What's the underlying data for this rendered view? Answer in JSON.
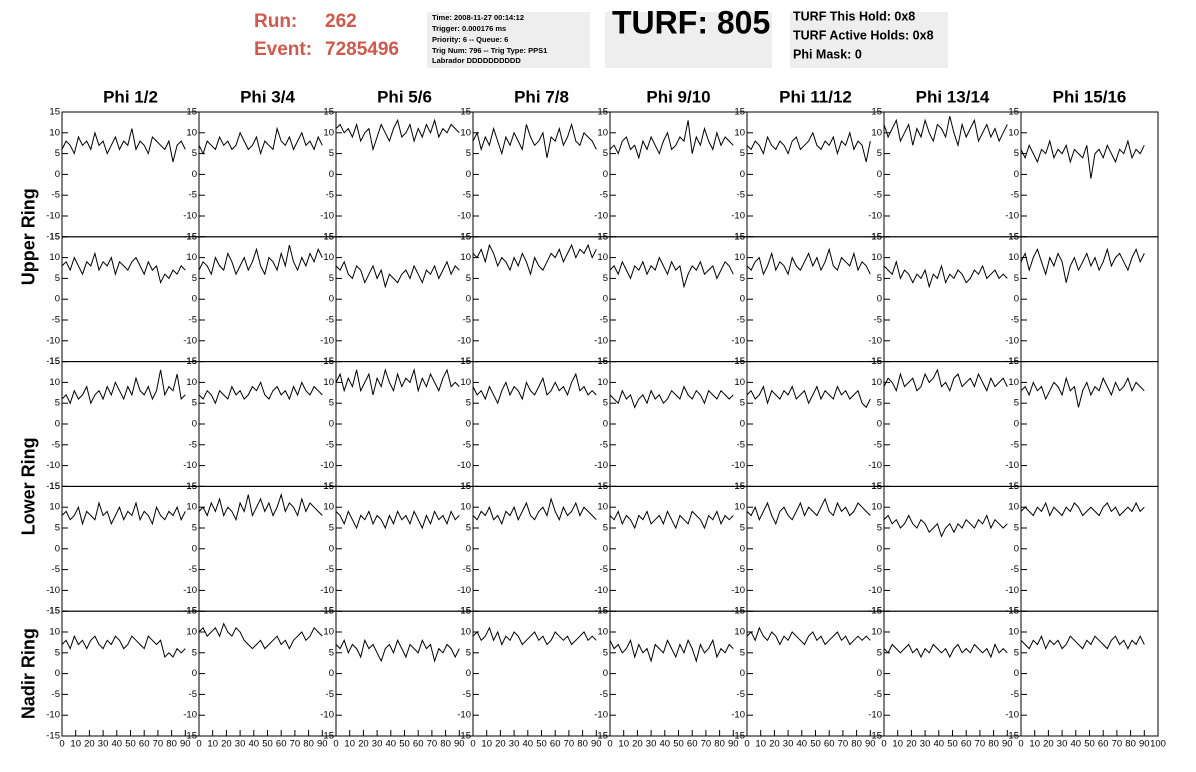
{
  "header": {
    "run_label": "Run:",
    "run": "262",
    "event_label": "Event:",
    "event": "7285496",
    "info": [
      "Time: 2008-11-27 00:14:12",
      "Trigger: 0.000176 ms",
      "Priority: 6 -- Queue: 6",
      "Trig Num: 796 -- Trig Type: PPS1",
      "Labrador DDDDDDDDDD"
    ],
    "turf": "TURF: 805",
    "turf_info": [
      "TURF This Hold: 0x8",
      "TURF Active Holds: 0x8",
      "Phi Mask: 0"
    ]
  },
  "chart_data": {
    "type": "line",
    "color": "#000000",
    "columns": [
      "Phi 1/2",
      "Phi 3/4",
      "Phi 5/6",
      "Phi 7/8",
      "Phi 9/10",
      "Phi 11/12",
      "Phi 13/14",
      "Phi 15/16"
    ],
    "row_labels": [
      "Upper Ring",
      "Lower Ring",
      "Nadir Ring"
    ],
    "xlim": [
      0,
      100
    ],
    "xticks": [
      0,
      10,
      20,
      30,
      40,
      50,
      60,
      70,
      80,
      90,
      100
    ],
    "ylim": [
      -15,
      15
    ],
    "yticks": [
      -15,
      -10,
      -5,
      0,
      5,
      10,
      15
    ],
    "x": [
      0,
      3,
      6,
      9,
      12,
      15,
      18,
      21,
      24,
      27,
      30,
      33,
      36,
      39,
      42,
      45,
      48,
      51,
      54,
      57,
      60,
      63,
      66,
      69,
      72,
      75,
      78,
      81,
      84,
      87,
      90
    ],
    "series": [
      {
        "values": [
          6,
          8,
          7,
          5,
          9,
          7,
          8,
          6,
          10,
          7,
          8,
          5,
          7,
          9,
          6,
          8,
          7,
          11,
          6,
          8,
          7,
          5,
          9,
          8,
          7,
          6,
          8,
          3,
          7,
          8,
          6
        ]
      },
      {
        "values": [
          7,
          5,
          8,
          7,
          6,
          9,
          7,
          8,
          6,
          7,
          10,
          8,
          6,
          7,
          9,
          5,
          8,
          7,
          6,
          11,
          8,
          7,
          9,
          6,
          8,
          10,
          7,
          8,
          6,
          9,
          7
        ]
      },
      {
        "values": [
          11,
          12,
          10,
          11,
          9,
          12,
          8,
          10,
          11,
          6,
          9,
          12,
          10,
          8,
          11,
          13,
          9,
          10,
          12,
          8,
          11,
          9,
          12,
          10,
          13,
          9,
          11,
          10,
          12,
          11,
          10
        ]
      },
      {
        "values": [
          8,
          10,
          6,
          9,
          7,
          11,
          8,
          5,
          9,
          7,
          10,
          8,
          6,
          12,
          9,
          7,
          8,
          10,
          4,
          9,
          8,
          11,
          7,
          9,
          12,
          8,
          7,
          10,
          9,
          8,
          6
        ]
      },
      {
        "values": [
          6,
          7,
          5,
          8,
          9,
          6,
          7,
          4,
          8,
          6,
          9,
          7,
          5,
          8,
          10,
          6,
          7,
          9,
          8,
          13,
          5,
          9,
          7,
          11,
          8,
          6,
          10,
          7,
          9,
          8,
          7
        ]
      },
      {
        "values": [
          7,
          6,
          8,
          7,
          5,
          9,
          7,
          6,
          8,
          7,
          5,
          8,
          9,
          6,
          7,
          8,
          10,
          7,
          6,
          8,
          7,
          9,
          5,
          8,
          7,
          10,
          6,
          8,
          7,
          3,
          8
        ]
      },
      {
        "values": [
          12,
          9,
          11,
          13,
          8,
          10,
          12,
          7,
          11,
          9,
          13,
          10,
          8,
          12,
          11,
          9,
          14,
          10,
          7,
          12,
          9,
          11,
          13,
          8,
          10,
          12,
          9,
          11,
          8,
          10,
          12
        ]
      },
      {
        "values": [
          6,
          4,
          7,
          5,
          3,
          6,
          5,
          8,
          4,
          6,
          5,
          7,
          3,
          6,
          5,
          4,
          7,
          -1,
          5,
          6,
          4,
          7,
          5,
          3,
          6,
          5,
          8,
          4,
          6,
          5,
          7
        ]
      },
      {
        "values": [
          8,
          9,
          7,
          10,
          8,
          6,
          9,
          8,
          11,
          7,
          9,
          8,
          10,
          6,
          9,
          8,
          7,
          9,
          10,
          8,
          6,
          9,
          7,
          8,
          4,
          6,
          5,
          7,
          6,
          8,
          7
        ]
      },
      {
        "values": [
          7,
          9,
          8,
          6,
          10,
          8,
          7,
          11,
          9,
          6,
          8,
          10,
          7,
          9,
          12,
          8,
          6,
          10,
          9,
          7,
          11,
          8,
          13,
          9,
          7,
          10,
          8,
          11,
          9,
          12,
          10
        ]
      },
      {
        "values": [
          8,
          7,
          9,
          6,
          5,
          8,
          7,
          4,
          6,
          8,
          5,
          7,
          3,
          6,
          5,
          4,
          6,
          7,
          5,
          8,
          6,
          4,
          7,
          6,
          8,
          5,
          7,
          9,
          6,
          8,
          7
        ]
      },
      {
        "values": [
          11,
          10,
          12,
          9,
          13,
          11,
          8,
          10,
          9,
          7,
          10,
          8,
          11,
          9,
          6,
          10,
          8,
          7,
          9,
          11,
          10,
          12,
          9,
          11,
          13,
          10,
          12,
          11,
          13,
          10,
          12
        ]
      },
      {
        "values": [
          7,
          8,
          6,
          9,
          7,
          5,
          8,
          7,
          9,
          6,
          8,
          7,
          10,
          8,
          6,
          9,
          7,
          8,
          3,
          6,
          8,
          7,
          9,
          6,
          7,
          8,
          5,
          7,
          9,
          8,
          6
        ]
      },
      {
        "values": [
          8,
          7,
          9,
          10,
          6,
          8,
          11,
          7,
          9,
          8,
          6,
          10,
          8,
          7,
          9,
          11,
          8,
          10,
          7,
          9,
          12,
          8,
          7,
          10,
          9,
          8,
          11,
          7,
          9,
          8,
          6
        ]
      },
      {
        "values": [
          8,
          7,
          6,
          9,
          5,
          7,
          6,
          4,
          6,
          5,
          7,
          3,
          6,
          5,
          8,
          4,
          6,
          5,
          7,
          6,
          4,
          5,
          7,
          6,
          8,
          5,
          6,
          7,
          5,
          6,
          5
        ]
      },
      {
        "values": [
          9,
          11,
          7,
          10,
          12,
          9,
          6,
          10,
          8,
          11,
          9,
          4,
          8,
          10,
          7,
          9,
          11,
          8,
          10,
          7,
          9,
          12,
          8,
          10,
          11,
          9,
          7,
          10,
          12,
          9,
          11
        ]
      },
      {
        "values": [
          6,
          7,
          5,
          8,
          6,
          7,
          9,
          5,
          7,
          8,
          6,
          9,
          7,
          10,
          8,
          6,
          9,
          7,
          11,
          8,
          7,
          9,
          6,
          8,
          13,
          7,
          9,
          8,
          12,
          6,
          7
        ]
      },
      {
        "values": [
          7,
          6,
          8,
          7,
          5,
          8,
          7,
          6,
          9,
          7,
          8,
          6,
          7,
          9,
          8,
          10,
          7,
          6,
          8,
          9,
          7,
          8,
          6,
          9,
          7,
          10,
          8,
          7,
          9,
          8,
          7
        ]
      },
      {
        "values": [
          10,
          12,
          8,
          11,
          9,
          13,
          8,
          10,
          12,
          7,
          11,
          9,
          13,
          10,
          8,
          12,
          9,
          11,
          10,
          13,
          8,
          11,
          9,
          12,
          10,
          8,
          11,
          13,
          9,
          10,
          9
        ]
      },
      {
        "values": [
          9,
          7,
          8,
          6,
          9,
          7,
          5,
          8,
          10,
          7,
          9,
          8,
          6,
          10,
          8,
          7,
          9,
          11,
          7,
          8,
          10,
          8,
          9,
          7,
          10,
          12,
          8,
          9,
          7,
          8,
          7
        ]
      },
      {
        "values": [
          7,
          6,
          5,
          8,
          6,
          7,
          4,
          6,
          7,
          5,
          8,
          6,
          7,
          5,
          6,
          8,
          7,
          6,
          9,
          7,
          6,
          8,
          7,
          5,
          8,
          7,
          6,
          8,
          7,
          6,
          7
        ]
      },
      {
        "values": [
          7,
          8,
          6,
          7,
          9,
          5,
          8,
          7,
          6,
          8,
          7,
          9,
          6,
          7,
          8,
          5,
          7,
          9,
          6,
          8,
          7,
          6,
          9,
          7,
          8,
          6,
          7,
          8,
          5,
          4,
          6
        ]
      },
      {
        "values": [
          9,
          11,
          10,
          8,
          12,
          9,
          10,
          11,
          8,
          9,
          12,
          10,
          11,
          13,
          9,
          10,
          8,
          11,
          12,
          9,
          10,
          11,
          9,
          12,
          10,
          8,
          11,
          9,
          10,
          11,
          9
        ]
      },
      {
        "values": [
          8,
          9,
          7,
          10,
          8,
          9,
          6,
          8,
          10,
          9,
          7,
          11,
          8,
          9,
          4,
          8,
          10,
          7,
          9,
          8,
          11,
          9,
          7,
          10,
          8,
          9,
          11,
          8,
          10,
          9,
          8
        ]
      },
      {
        "values": [
          8,
          9,
          7,
          8,
          10,
          6,
          9,
          8,
          7,
          11,
          8,
          9,
          6,
          8,
          10,
          7,
          9,
          8,
          11,
          7,
          9,
          8,
          6,
          10,
          8,
          7,
          9,
          8,
          10,
          7,
          9
        ]
      },
      {
        "values": [
          9,
          10,
          8,
          11,
          9,
          12,
          8,
          10,
          9,
          7,
          11,
          9,
          13,
          8,
          10,
          12,
          9,
          11,
          8,
          10,
          13,
          9,
          11,
          10,
          8,
          12,
          9,
          11,
          10,
          9,
          8
        ]
      },
      {
        "values": [
          9,
          8,
          6,
          9,
          7,
          5,
          8,
          7,
          9,
          6,
          8,
          7,
          5,
          8,
          6,
          9,
          7,
          8,
          6,
          9,
          7,
          5,
          8,
          6,
          9,
          7,
          8,
          6,
          9,
          7,
          8
        ]
      },
      {
        "values": [
          8,
          7,
          9,
          8,
          10,
          7,
          8,
          6,
          9,
          8,
          10,
          7,
          9,
          11,
          8,
          7,
          9,
          10,
          8,
          12,
          9,
          7,
          10,
          8,
          9,
          11,
          8,
          10,
          9,
          8,
          7
        ]
      },
      {
        "values": [
          8,
          7,
          9,
          6,
          8,
          7,
          5,
          8,
          7,
          9,
          6,
          7,
          8,
          6,
          9,
          7,
          5,
          8,
          7,
          6,
          9,
          8,
          7,
          5,
          8,
          7,
          9,
          6,
          8,
          7,
          8
        ]
      },
      {
        "values": [
          9,
          8,
          10,
          7,
          9,
          11,
          8,
          6,
          9,
          10,
          8,
          7,
          9,
          11,
          8,
          10,
          9,
          8,
          10,
          12,
          9,
          8,
          11,
          9,
          10,
          8,
          9,
          11,
          10,
          9,
          8
        ]
      },
      {
        "values": [
          7,
          8,
          6,
          7,
          5,
          6,
          8,
          6,
          5,
          7,
          6,
          4,
          5,
          6,
          3,
          5,
          6,
          4,
          6,
          5,
          7,
          6,
          5,
          7,
          6,
          8,
          5,
          7,
          6,
          5,
          6
        ]
      },
      {
        "values": [
          9,
          10,
          9,
          8,
          10,
          9,
          11,
          8,
          10,
          9,
          8,
          10,
          9,
          11,
          10,
          8,
          9,
          10,
          9,
          8,
          10,
          11,
          9,
          10,
          8,
          9,
          10,
          9,
          11,
          9,
          10
        ]
      },
      {
        "values": [
          7,
          8,
          6,
          9,
          7,
          8,
          6,
          8,
          9,
          7,
          6,
          8,
          7,
          9,
          8,
          6,
          7,
          9,
          8,
          7,
          6,
          9,
          8,
          7,
          8,
          4,
          5,
          4,
          6,
          5,
          6
        ]
      },
      {
        "values": [
          10,
          11,
          9,
          10,
          11,
          9,
          12,
          10,
          9,
          11,
          10,
          8,
          7,
          6,
          7,
          8,
          6,
          7,
          8,
          9,
          7,
          8,
          6,
          8,
          9,
          10,
          8,
          9,
          11,
          10,
          9
        ]
      },
      {
        "values": [
          7,
          6,
          8,
          5,
          7,
          6,
          4,
          8,
          6,
          7,
          5,
          3,
          6,
          7,
          5,
          8,
          6,
          4,
          7,
          6,
          5,
          8,
          6,
          7,
          3,
          6,
          5,
          7,
          6,
          4,
          6
        ]
      },
      {
        "values": [
          9,
          10,
          8,
          9,
          11,
          8,
          10,
          7,
          9,
          8,
          10,
          9,
          7,
          8,
          9,
          10,
          8,
          9,
          7,
          8,
          10,
          9,
          8,
          9,
          7,
          8,
          9,
          10,
          8,
          9,
          8
        ]
      },
      {
        "values": [
          8,
          6,
          7,
          5,
          6,
          8,
          4,
          7,
          5,
          6,
          3,
          7,
          6,
          5,
          8,
          6,
          4,
          7,
          5,
          8,
          6,
          3,
          7,
          5,
          6,
          8,
          4,
          6,
          5,
          7,
          6
        ]
      },
      {
        "values": [
          9,
          10,
          8,
          11,
          9,
          8,
          10,
          9,
          7,
          9,
          8,
          10,
          9,
          8,
          7,
          9,
          10,
          8,
          9,
          7,
          8,
          9,
          10,
          8,
          9,
          7,
          8,
          9,
          8,
          9,
          8
        ]
      },
      {
        "values": [
          6,
          5,
          7,
          6,
          5,
          6,
          7,
          5,
          6,
          4,
          6,
          5,
          7,
          6,
          5,
          6,
          4,
          6,
          7,
          5,
          6,
          5,
          7,
          6,
          5,
          6,
          4,
          7,
          5,
          6,
          5
        ]
      },
      {
        "values": [
          8,
          7,
          6,
          8,
          7,
          9,
          6,
          8,
          7,
          8,
          6,
          7,
          9,
          8,
          7,
          6,
          8,
          7,
          9,
          8,
          7,
          6,
          8,
          9,
          7,
          8,
          6,
          8,
          7,
          9,
          7
        ]
      }
    ]
  }
}
